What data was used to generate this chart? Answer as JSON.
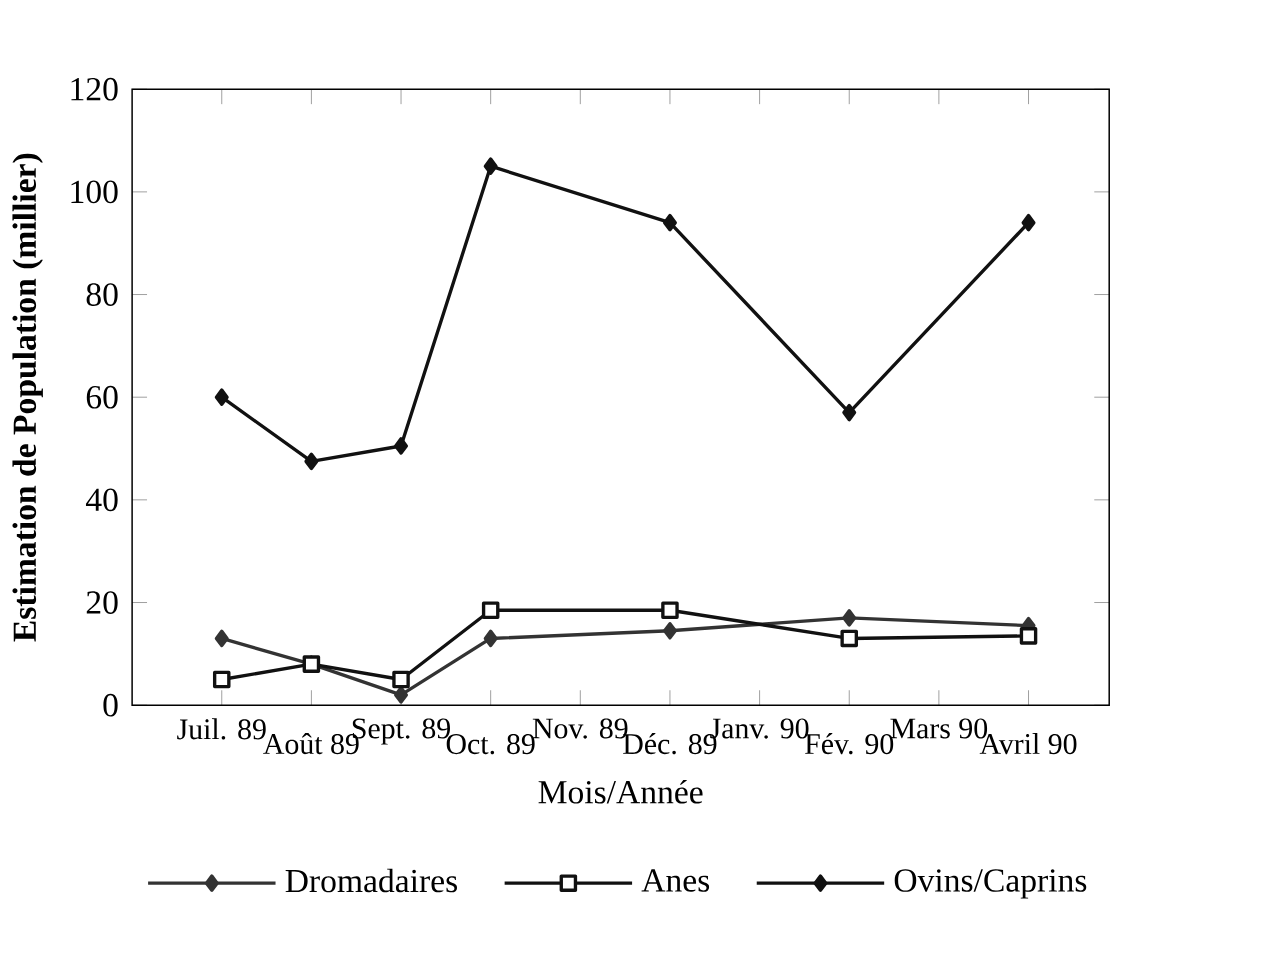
{
  "chart_data": {
    "type": "line",
    "xlabel": "Mois/Année",
    "ylabel": "Estimation de Population (millier)",
    "categories": [
      "Juil. 89",
      "Août 89",
      "Sept. 89",
      "Oct. 89",
      "Nov. 89",
      "Déc. 89",
      "Janv. 90",
      "Fév. 90",
      "Mars 90",
      "Avril 90"
    ],
    "series": [
      {
        "name": "Dromadaires",
        "color": "#333333",
        "marker": "diamond",
        "values": [
          13,
          8,
          2,
          13,
          null,
          14.5,
          null,
          17,
          null,
          15.5
        ]
      },
      {
        "name": "Anes",
        "color": "#111111",
        "marker": "square",
        "values": [
          5,
          8,
          5,
          18.5,
          null,
          18.5,
          null,
          13,
          null,
          13.5
        ]
      },
      {
        "name": "Ovins/Caprins",
        "color": "#111111",
        "marker": "diamond",
        "values": [
          60,
          47.5,
          50.5,
          105,
          null,
          94,
          null,
          57,
          null,
          94
        ]
      }
    ],
    "ylim": [
      0,
      120
    ],
    "yticks": [
      0,
      20,
      40,
      60,
      80,
      100,
      120
    ],
    "grid": false,
    "legend": "bottom",
    "line_style": "solid"
  }
}
